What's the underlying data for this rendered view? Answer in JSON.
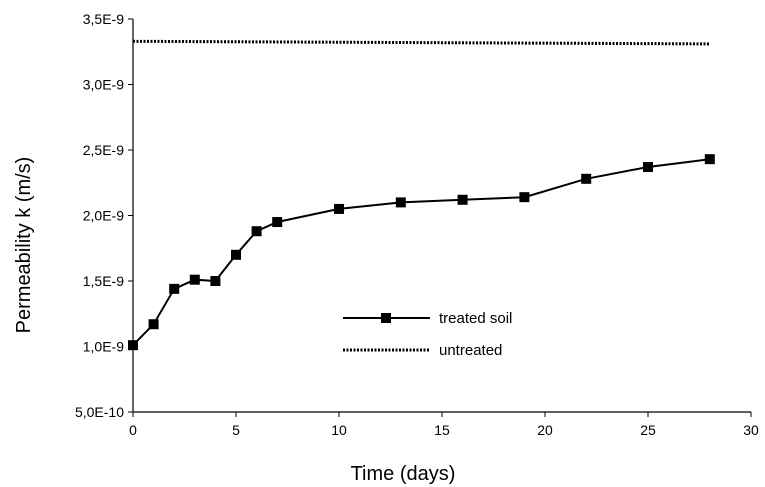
{
  "chart_data": {
    "type": "line",
    "title": "",
    "xlabel": "Time (days)",
    "ylabel": "Permeability k (m/s)",
    "xlim": [
      0,
      30
    ],
    "ylim": [
      5e-10,
      3.5e-09
    ],
    "x_ticks": [
      0,
      5,
      10,
      15,
      20,
      25,
      30
    ],
    "x_tick_labels": [
      "0",
      "5",
      "10",
      "15",
      "20",
      "25",
      "30"
    ],
    "y_ticks": [
      5e-10,
      1e-09,
      1.5e-09,
      2e-09,
      2.5e-09,
      3e-09,
      3.5e-09
    ],
    "y_tick_labels": [
      "5,0E-10",
      "1,0E-9",
      "1,5E-9",
      "2,0E-9",
      "2,5E-9",
      "3,0E-9",
      "3,5E-9"
    ],
    "grid": false,
    "legend_position": "center",
    "series": [
      {
        "name": "treated soil",
        "style": "solid-square-markers",
        "color": "#000000",
        "x": [
          0,
          1,
          2,
          3,
          4,
          5,
          6,
          7,
          10,
          13,
          16,
          19,
          22,
          25,
          28
        ],
        "y": [
          1.01e-09,
          1.17e-09,
          1.44e-09,
          1.51e-09,
          1.5e-09,
          1.7e-09,
          1.88e-09,
          1.95e-09,
          2.05e-09,
          2.1e-09,
          2.12e-09,
          2.14e-09,
          2.28e-09,
          2.37e-09,
          2.43e-09
        ]
      },
      {
        "name": "untreated",
        "style": "dotted",
        "color": "#000000",
        "x": [
          0,
          28
        ],
        "y": [
          3.33e-09,
          3.31e-09
        ]
      }
    ]
  }
}
